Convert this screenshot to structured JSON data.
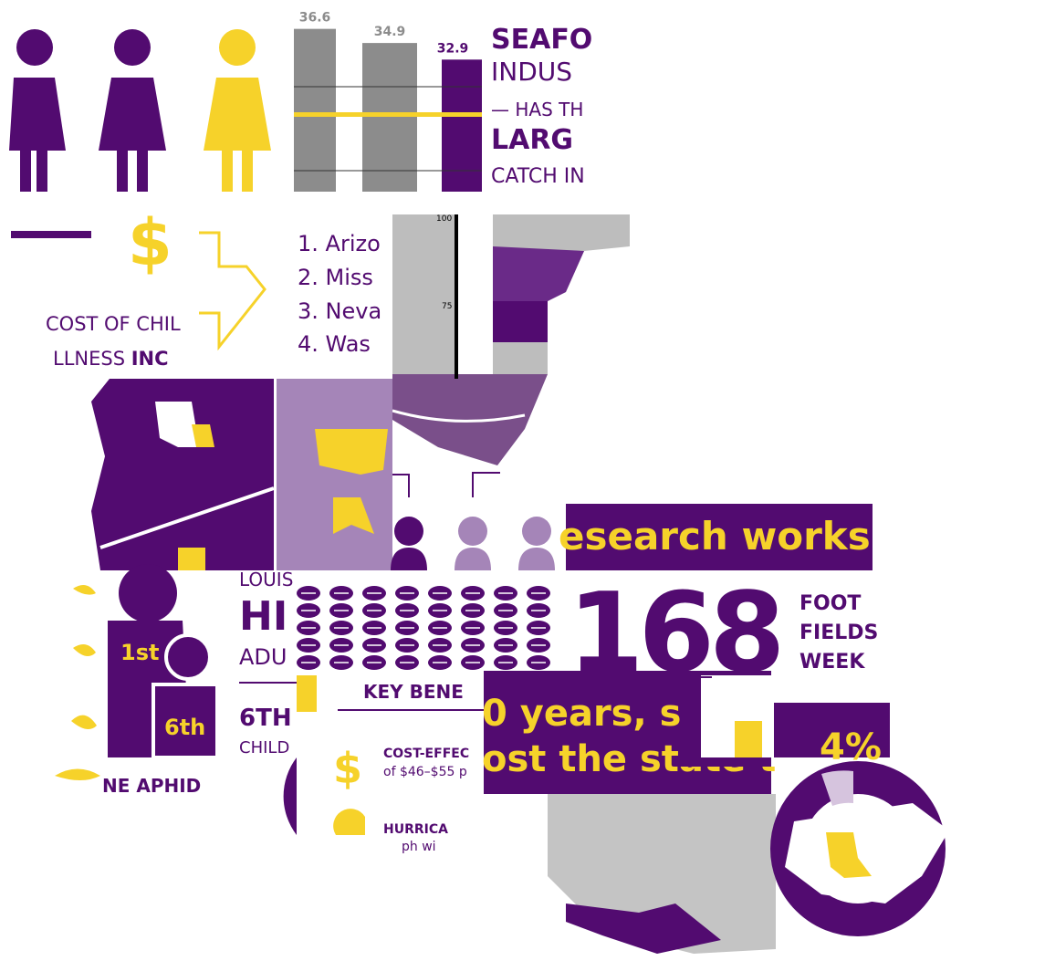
{
  "bar_fragment": {
    "values": [
      36.6,
      34.9,
      32.9
    ],
    "ylim": [
      17,
      37
    ]
  },
  "seafood": [
    "SEAFO",
    "INDUS",
    "— HAS TH",
    "LARG",
    "CATCH IN"
  ],
  "dollar_sign": "$",
  "cost_text": {
    "line1": "COST OF CHIL",
    "line2": "LLNESS",
    "line2_bold": "INC"
  },
  "ranking": [
    "1.  Arizo",
    "2.  Miss",
    "3.  Neva",
    "4.  Was"
  ],
  "axis_ticks": [
    100,
    75
  ],
  "banner": "esearch works",
  "louisiana_text": {
    "line1": "LOUIS",
    "line2": "HI",
    "line3": "ADU",
    "line4": "6TH",
    "line5": "CHILD"
  },
  "figure_labels": [
    "1st",
    "6th"
  ],
  "aphid": "NE APHID",
  "key_benefits": {
    "title": "KEY BENE",
    "item1_title": "COST-EFFEC",
    "item1_text": "of $46–$55 p",
    "item2_title": "HURRICA",
    "item2_text": "ph wi"
  },
  "stat": {
    "number": "168",
    "line1": "FOOT",
    "line2": "FIELDS",
    "line3": "WEEK"
  },
  "purple_box": {
    "line1": "0 years, s",
    "line2": "ost the state t"
  },
  "percent": "4%"
}
